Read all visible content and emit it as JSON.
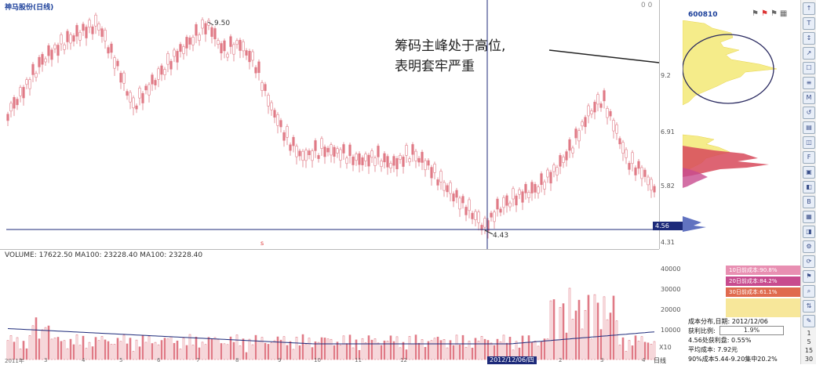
{
  "header": {
    "stock_title": "神马股份(日线)",
    "code": "600810",
    "top_small": "0 0"
  },
  "annotation": {
    "line1": "筹码主峰处于高位,",
    "line2": "表明套牢严重"
  },
  "main_chart": {
    "high_label": "9.50",
    "low_label": "4.43",
    "crosshair_price": "4.56",
    "crosshair_date": "2012/12/06/四",
    "price_ticks": [
      "9.2",
      "6.91",
      "5.82",
      "4.56",
      "4.31"
    ],
    "period_label": "日线"
  },
  "volume": {
    "header": "VOLUME: 17622.50  MA100: 23228.40  MA100: 23228.40",
    "ticks": [
      "40000",
      "30000",
      "20000",
      "10000",
      "X10"
    ]
  },
  "chip": {
    "legend": [
      {
        "label": "10日前成本:90.8%",
        "color": "#e88fb2"
      },
      {
        "label": "20日前成本:84.2%",
        "color": "#c84b8e"
      },
      {
        "label": "30日前成本:61.1%",
        "color": "#e06a4e"
      },
      {
        "label": "",
        "color": "#f7e79a"
      },
      {
        "label": "",
        "color": "#f7e79a"
      }
    ],
    "stats": {
      "dist_date": "成本分布,日期: 2012/12/06",
      "profit_ratio_label": "获利比例:",
      "profit_ratio_value": "1.9%",
      "profit_at_price": "4.56处获利盘: 0.55%",
      "avg_cost": "平均成本: 7.92元",
      "cost_90": "90%成本5.44-9.20集中20.2%"
    }
  },
  "x_axis": {
    "dates": [
      "2011年",
      "3",
      "4",
      "5",
      "6",
      "7",
      "8",
      "9",
      "10",
      "11",
      "12",
      "2012/12/06/四",
      "2",
      "3",
      "4"
    ]
  },
  "toolbar": {
    "side_numbers": [
      "1",
      "5",
      "15",
      "30"
    ]
  },
  "colors": {
    "candle": "#e07a86",
    "peak_yellow": "#f5ec8a",
    "peak_red": "#d7495a",
    "crosshair": "#1d2a7a"
  }
}
